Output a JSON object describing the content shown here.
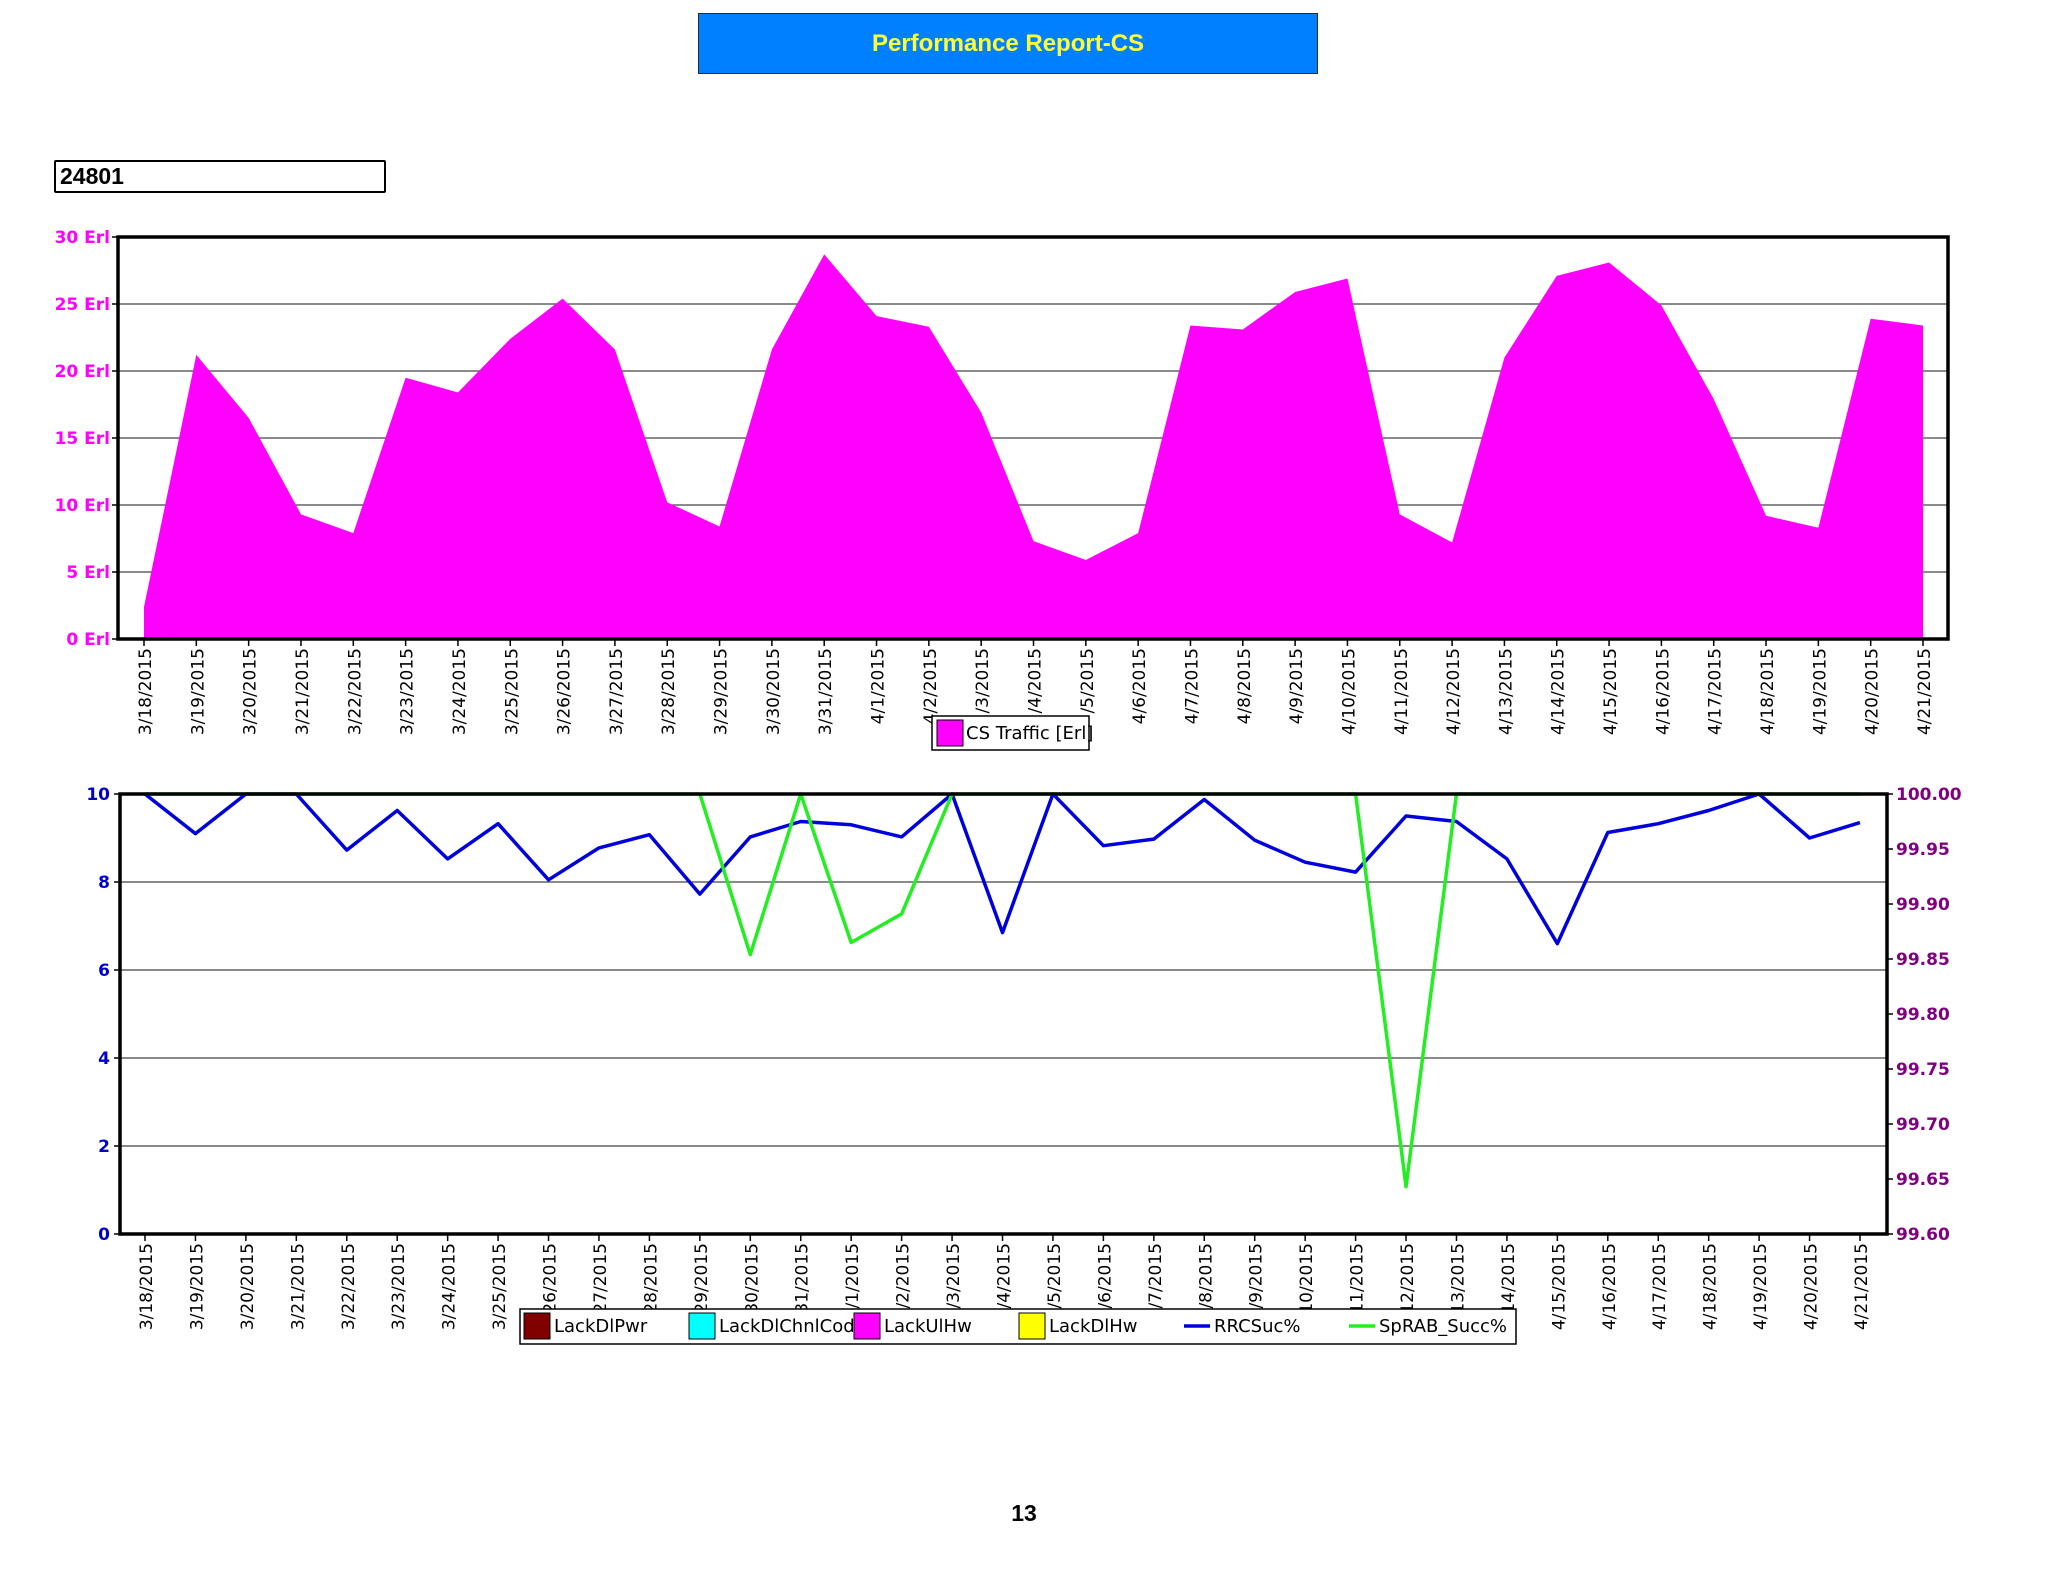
{
  "header": {
    "title": "Performance Report-CS",
    "cell_id": "24801"
  },
  "page_number": "13",
  "colors": {
    "traffic_fill": "#ff00ff",
    "left_axis_top": "#ff00ff",
    "left_axis_bottom": "#0000cc",
    "right_axis": "#800080",
    "rrc_line": "#0000dd",
    "sprab_line": "#22ee22",
    "swatch_lackdlpwr": "#800000",
    "swatch_lackdlchnlcode": "#00ffff",
    "swatch_lackulhw": "#ff00ff",
    "swatch_lackdlhw": "#ffff00"
  },
  "chart_data": [
    {
      "type": "area",
      "x": [
        "3/18/2015",
        "3/19/2015",
        "3/20/2015",
        "3/21/2015",
        "3/22/2015",
        "3/23/2015",
        "3/24/2015",
        "3/25/2015",
        "3/26/2015",
        "3/27/2015",
        "3/28/2015",
        "3/29/2015",
        "3/30/2015",
        "3/31/2015",
        "4/1/2015",
        "4/2/2015",
        "4/3/2015",
        "4/4/2015",
        "4/5/2015",
        "4/6/2015",
        "4/7/2015",
        "4/8/2015",
        "4/9/2015",
        "4/10/2015",
        "4/11/2015",
        "4/12/2015",
        "4/13/2015",
        "4/14/2015",
        "4/15/2015",
        "4/16/2015",
        "4/17/2015",
        "4/18/2015",
        "4/19/2015",
        "4/20/2015",
        "4/21/2015"
      ],
      "x_tick_labels": [
        "3/18/2015",
        "3/19/2015",
        "3/20/2015",
        "3/21/2015",
        "3/22/2015",
        "3/23/2015",
        "3/24/2015",
        "3/25/2015",
        "3/26/2015",
        "3/27/2015",
        "3/28/2015",
        "3/29/2015",
        "3/30/2015",
        "3/31/2015",
        "4/1/2015",
        "4/2/2015",
        "/3/2015",
        "/4/2015",
        "/5/2015",
        "4/6/2015",
        "4/7/2015",
        "4/8/2015",
        "4/9/2015",
        "4/10/2015",
        "4/11/2015",
        "4/12/2015",
        "4/13/2015",
        "4/14/2015",
        "4/15/2015",
        "4/16/2015",
        "4/17/2015",
        "4/18/2015",
        "4/19/2015",
        "4/20/2015",
        "4/21/2015"
      ],
      "series": [
        {
          "name": "CS Traffic [Erl]",
          "values": [
            2.4,
            21.2,
            16.5,
            9.3,
            7.9,
            19.5,
            18.4,
            22.4,
            25.4,
            21.6,
            10.2,
            8.4,
            21.6,
            28.7,
            24.1,
            23.3,
            16.9,
            7.3,
            5.9,
            7.9,
            23.4,
            23.1,
            25.9,
            26.9,
            9.3,
            7.2,
            21.0,
            27.1,
            28.1,
            24.9,
            17.9,
            9.2,
            8.3,
            23.9,
            23.4
          ]
        }
      ],
      "y_ticks": [
        "0 Erl",
        "5 Erl",
        "10 Erl",
        "15 Erl",
        "20 Erl",
        "25 Erl",
        "30 Erl"
      ],
      "ylim": [
        0,
        30
      ],
      "grid": true,
      "legend_position": "bottom-center"
    },
    {
      "type": "line",
      "x": [
        "3/18/2015",
        "3/19/2015",
        "3/20/2015",
        "3/21/2015",
        "3/22/2015",
        "3/23/2015",
        "3/24/2015",
        "3/25/2015",
        "3/26/2015",
        "3/27/2015",
        "3/28/2015",
        "3/29/2015",
        "3/30/2015",
        "3/31/2015",
        "4/1/2015",
        "4/2/2015",
        "4/3/2015",
        "4/4/2015",
        "4/5/2015",
        "4/6/2015",
        "4/7/2015",
        "4/8/2015",
        "4/9/2015",
        "4/10/2015",
        "4/11/2015",
        "4/12/2015",
        "4/13/2015",
        "4/14/2015",
        "4/15/2015",
        "4/16/2015",
        "4/17/2015",
        "4/18/2015",
        "4/19/2015",
        "4/20/2015",
        "4/21/2015"
      ],
      "x_tick_labels": [
        "3/18/2015",
        "3/19/2015",
        "3/20/2015",
        "3/21/2015",
        "3/22/2015",
        "3/23/2015",
        "3/24/2015",
        "3/25/2015",
        "26/2015",
        "27/2015",
        "28/2015",
        "29/2015",
        "30/2015",
        "31/2015",
        "/1/2015",
        "/2/2015",
        "/3/2015",
        "/4/2015",
        "/5/2015",
        "/6/2015",
        "/7/2015",
        "/8/2015",
        "/9/2015",
        "10/2015",
        "11/2015",
        "12/2015",
        "13/2015",
        "14/2015",
        "4/15/2015",
        "4/16/2015",
        "4/17/2015",
        "4/18/2015",
        "4/19/2015",
        "4/20/2015",
        "4/21/2015"
      ],
      "y_left_ticks": [
        "0",
        "2",
        "4",
        "6",
        "8",
        "10"
      ],
      "y_left_lim": [
        0,
        10
      ],
      "y_right_ticks": [
        "99.60",
        "99.65",
        "99.70",
        "99.75",
        "99.80",
        "99.85",
        "99.90",
        "99.95",
        "100.00"
      ],
      "y_right_lim": [
        99.6,
        100.0
      ],
      "series": [
        {
          "name": "LackDlPwr",
          "axis": "left",
          "values": [
            0,
            0,
            0,
            0,
            0,
            0,
            0,
            0,
            0,
            0,
            0,
            0,
            0,
            0,
            0,
            0,
            0,
            0,
            0,
            0,
            0,
            0,
            0,
            0,
            0,
            0,
            0,
            0,
            0,
            0,
            0,
            0,
            0,
            0,
            0
          ]
        },
        {
          "name": "LackDlChnlCode",
          "axis": "left",
          "values": [
            0,
            0,
            0,
            0,
            0,
            0,
            0,
            0,
            0,
            0,
            0,
            0,
            0,
            0,
            0,
            0,
            0,
            0,
            0,
            0,
            0,
            0,
            0,
            0,
            0,
            0,
            0,
            0,
            0,
            0,
            0,
            0,
            0,
            0,
            0
          ]
        },
        {
          "name": "LackUlHw",
          "axis": "left",
          "values": [
            0,
            0,
            0,
            0,
            0,
            0,
            0,
            0,
            0,
            0,
            0,
            0,
            0,
            0,
            0,
            0,
            0,
            0,
            0,
            0,
            0,
            0,
            0,
            0,
            0,
            0,
            0,
            0,
            0,
            0,
            0,
            0,
            0,
            0,
            0
          ]
        },
        {
          "name": "LackDlHw",
          "axis": "left",
          "values": [
            0,
            0,
            0,
            0,
            0,
            0,
            0,
            0,
            0,
            0,
            0,
            0,
            0,
            0,
            0,
            0,
            0,
            0,
            0,
            0,
            0,
            0,
            0,
            0,
            0,
            0,
            0,
            0,
            0,
            0,
            0,
            0,
            0,
            0,
            0
          ]
        },
        {
          "name": "RRCSuc%",
          "axis": "right",
          "values": [
            100.0,
            99.964,
            100.0,
            100.0,
            99.949,
            99.985,
            99.941,
            99.973,
            99.922,
            99.951,
            99.963,
            99.909,
            99.961,
            99.975,
            99.972,
            99.961,
            100.0,
            99.874,
            100.0,
            99.953,
            99.959,
            99.995,
            99.958,
            99.938,
            99.929,
            99.98,
            99.975,
            99.941,
            99.864,
            99.965,
            99.973,
            99.985,
            100.0,
            99.96,
            99.974
          ]
        },
        {
          "name": "SpRAB_Succ%",
          "axis": "right",
          "values": [
            100.0,
            100.0,
            100.0,
            100.0,
            100.0,
            100.0,
            100.0,
            100.0,
            100.0,
            100.0,
            100.0,
            100.0,
            99.854,
            100.0,
            99.865,
            99.891,
            100.0,
            100.0,
            100.0,
            100.0,
            100.0,
            100.0,
            100.0,
            100.0,
            100.0,
            99.643,
            100.0,
            100.0,
            100.0,
            100.0,
            100.0,
            100.0,
            100.0,
            100.0,
            100.0
          ]
        }
      ],
      "grid": true,
      "legend_position": "bottom-center"
    }
  ]
}
